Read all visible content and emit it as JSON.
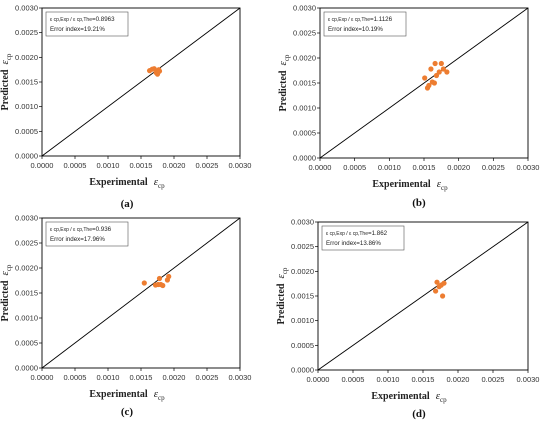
{
  "colors": {
    "points": "#ED7D31",
    "axes": "#000000",
    "diagonal": "#000000",
    "background": "#FFFFFF"
  },
  "chart_data": [
    {
      "panel_label": "(a)",
      "type": "scatter",
      "xlabel": "Experimental",
      "ylabel": "Predicted",
      "symbol": "ε",
      "subscript": "cp",
      "xlim": [
        0,
        0.003
      ],
      "ylim": [
        0,
        0.003
      ],
      "x_ticks": [
        "0.0000",
        "0.0005",
        "0.0010",
        "0.0015",
        "0.0020",
        "0.0025",
        "0.0030"
      ],
      "y_ticks": [
        "0.0000",
        "0.0005",
        "0.0010",
        "0.0015",
        "0.0020",
        "0.0025",
        "0.0030"
      ],
      "grid": false,
      "reference_line": "y = x",
      "annotation": {
        "ratio_label": "ε cp,Exp / ε cp,The",
        "ratio_value": "=0.8963",
        "error_text": "Error index=19.21%"
      },
      "points": [
        {
          "x": 0.00163,
          "y": 0.00173
        },
        {
          "x": 0.00167,
          "y": 0.00176
        },
        {
          "x": 0.0017,
          "y": 0.00177
        },
        {
          "x": 0.00173,
          "y": 0.00169
        },
        {
          "x": 0.00175,
          "y": 0.00166
        },
        {
          "x": 0.00177,
          "y": 0.00175
        },
        {
          "x": 0.00178,
          "y": 0.00172
        },
        {
          "x": 0.00176,
          "y": 0.0017
        }
      ]
    },
    {
      "panel_label": "(b)",
      "type": "scatter",
      "xlabel": "Experimental",
      "ylabel": "Predicted",
      "symbol": "ε",
      "subscript": "cp",
      "xlim": [
        0,
        0.003
      ],
      "ylim": [
        0,
        0.003
      ],
      "x_ticks": [
        "0.0000",
        "0.0005",
        "0.0010",
        "0.0015",
        "0.0020",
        "0.0025",
        "0.0030"
      ],
      "y_ticks": [
        "0.0000",
        "0.0005",
        "0.0010",
        "0.0015",
        "0.0020",
        "0.0025",
        "0.0030"
      ],
      "grid": false,
      "reference_line": "y = x",
      "annotation": {
        "ratio_label": "ε cp,Exp / ε cp,The",
        "ratio_value": "=1.1126",
        "error_text": "Error index=10.19%"
      },
      "points": [
        {
          "x": 0.00151,
          "y": 0.0016
        },
        {
          "x": 0.00155,
          "y": 0.0014
        },
        {
          "x": 0.00157,
          "y": 0.00145
        },
        {
          "x": 0.0016,
          "y": 0.00178
        },
        {
          "x": 0.00162,
          "y": 0.00152
        },
        {
          "x": 0.00165,
          "y": 0.0015
        },
        {
          "x": 0.00166,
          "y": 0.00189
        },
        {
          "x": 0.00168,
          "y": 0.00165
        },
        {
          "x": 0.00172,
          "y": 0.00172
        },
        {
          "x": 0.00175,
          "y": 0.00189
        },
        {
          "x": 0.00178,
          "y": 0.00178
        },
        {
          "x": 0.00183,
          "y": 0.00172
        }
      ]
    },
    {
      "panel_label": "(c)",
      "type": "scatter",
      "xlabel": "Experimental",
      "ylabel": "Predicted",
      "symbol": "ε",
      "subscript": "cp",
      "xlim": [
        0,
        0.003
      ],
      "ylim": [
        0,
        0.003
      ],
      "x_ticks": [
        "0.0000",
        "0.0005",
        "0.0010",
        "0.0015",
        "0.0020",
        "0.0025",
        "0.0030"
      ],
      "y_ticks": [
        "0.0000",
        "0.0005",
        "0.0010",
        "0.0015",
        "0.0020",
        "0.0025",
        "0.0030"
      ],
      "grid": false,
      "reference_line": "y = x",
      "annotation": {
        "ratio_label": "ε cp,Exp / ε cp,The",
        "ratio_value": "=0.936",
        "error_text": "Error index=17.96%"
      },
      "points": [
        {
          "x": 0.00155,
          "y": 0.0017
        },
        {
          "x": 0.00172,
          "y": 0.00166
        },
        {
          "x": 0.00176,
          "y": 0.00167
        },
        {
          "x": 0.00178,
          "y": 0.00179
        },
        {
          "x": 0.0018,
          "y": 0.00167
        },
        {
          "x": 0.00183,
          "y": 0.00165
        },
        {
          "x": 0.0019,
          "y": 0.00176
        },
        {
          "x": 0.00192,
          "y": 0.00183
        }
      ]
    },
    {
      "panel_label": "(d)",
      "type": "scatter",
      "xlabel": "Experimental",
      "ylabel": "Predicted",
      "symbol": "ε",
      "subscript": "cp",
      "xlim": [
        0,
        0.003
      ],
      "ylim": [
        0,
        0.003
      ],
      "x_ticks": [
        "0.0000",
        "0.0005",
        "0.0010",
        "0.0015",
        "0.0020",
        "0.0025",
        "0.0030"
      ],
      "y_ticks": [
        "0.0000",
        "0.0005",
        "0.0010",
        "0.0015",
        "0.0020",
        "0.0025",
        "0.0030"
      ],
      "grid": false,
      "reference_line": "y = x",
      "annotation": {
        "ratio_label": "ε cp,Exp / ε cp,The",
        "ratio_value": "=1.862",
        "error_text": "Error index=13.86%"
      },
      "points": [
        {
          "x": 0.00168,
          "y": 0.0016
        },
        {
          "x": 0.0017,
          "y": 0.00178
        },
        {
          "x": 0.00173,
          "y": 0.00169
        },
        {
          "x": 0.00176,
          "y": 0.00172
        },
        {
          "x": 0.00178,
          "y": 0.0015
        },
        {
          "x": 0.0018,
          "y": 0.00176
        }
      ]
    }
  ]
}
